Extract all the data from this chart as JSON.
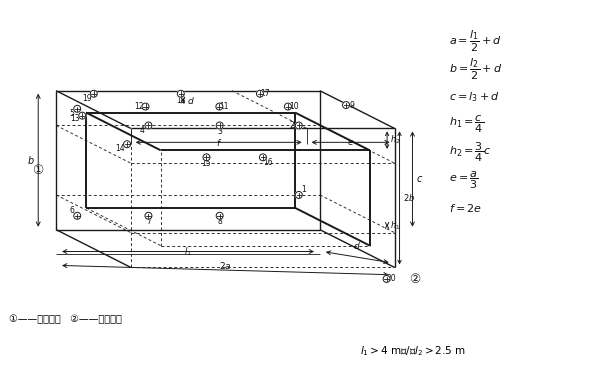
{
  "bg_color": "#ffffff",
  "lc": "#1a1a1a",
  "fig_width": 6.0,
  "fig_height": 3.75,
  "dpi": 100,
  "footnote1": "①——发动机侧   ②——发电机侧",
  "footnote2": "l₁>4 m和/或l₂>2.5 m"
}
